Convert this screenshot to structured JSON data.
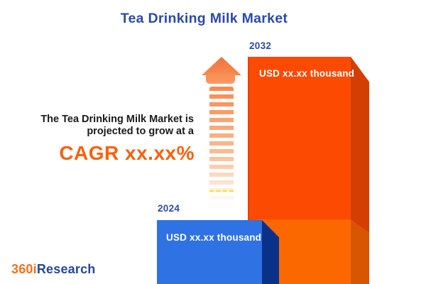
{
  "title": "Tea Drinking Milk Market",
  "description": {
    "line1": "The Tea Drinking Milk Market is",
    "line2": "projected to grow at a"
  },
  "cagr_text": "CAGR xx.xx%",
  "bars": {
    "start": {
      "year": "2024",
      "value": "USD xx.xx thousand"
    },
    "end": {
      "year": "2032",
      "value": "USD xx.xx thousand"
    }
  },
  "chart_data": {
    "type": "bar",
    "title": "Tea Drinking Milk Market",
    "categories": [
      "2024",
      "2032"
    ],
    "values": [
      "USD xx.xx thousand",
      "USD xx.xx thousand"
    ],
    "values_masked": true,
    "annotation": "The Tea Drinking Milk Market is projected to grow at a CAGR xx.xx%",
    "legend": "none",
    "axes": "none"
  },
  "logo": {
    "part1": "360i",
    "part2": "Research"
  },
  "colors": {
    "title_navy": "#2B4AA8",
    "cagr_orange": "#F9610C",
    "bar_2032_face": "#FD4A02",
    "bar_2032_side": "#D33E03",
    "bar_mid_face": "#FC6800",
    "bar_mid_side": "#D85501",
    "bar_2024_face": "#2E72E4",
    "bar_2024_side": "#0A3189",
    "arrow_coral": "#F78B51",
    "logo_orange": "#F4701D",
    "logo_navy": "#27459F",
    "body_text": "#1A1A1A"
  }
}
